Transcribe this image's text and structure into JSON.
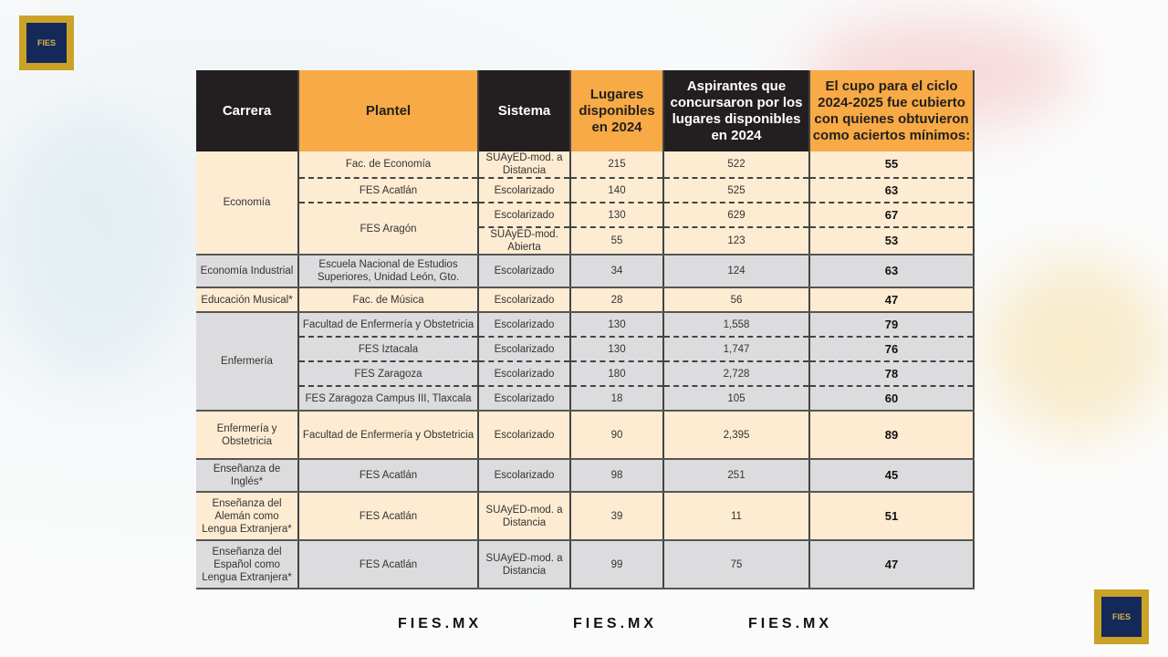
{
  "logo_text": "FIES",
  "footer": [
    "FIES.MX",
    "FIES.MX",
    "FIES.MX"
  ],
  "colors": {
    "header_dark": "#231f20",
    "header_orange": "#f7aa45",
    "row_cream": "#fdecd2",
    "row_gray": "#dcdcde",
    "logo_gold": "#c9a227",
    "logo_navy": "#14285a"
  },
  "table": {
    "headers": [
      {
        "label": "Carrera",
        "style": "dark"
      },
      {
        "label": "Plantel",
        "style": "orange"
      },
      {
        "label": "Sistema",
        "style": "dark"
      },
      {
        "label": "Lugares disponibles en 2024",
        "style": "orange"
      },
      {
        "label": "Aspirantes que concursaron por los lugares disponibles en 2024",
        "style": "dark"
      },
      {
        "label": "El cupo para el ciclo 2024-2025 fue cubierto con quienes obtuvieron como aciertos mínimos:",
        "style": "orange"
      }
    ],
    "groups": [
      {
        "carrera": "Economía",
        "shade": "cream",
        "planteles": [
          {
            "name": "Fac. de Economía",
            "rows": [
              {
                "sistema": "SUAyED-mod. a Distancia",
                "lugares": "215",
                "aspirantes": "522",
                "aciertos": "55"
              }
            ]
          },
          {
            "name": "FES Acatlán",
            "rows": [
              {
                "sistema": "Escolarizado",
                "lugares": "140",
                "aspirantes": "525",
                "aciertos": "63"
              }
            ]
          },
          {
            "name": "FES Aragón",
            "rows": [
              {
                "sistema": "Escolarizado",
                "lugares": "130",
                "aspirantes": "629",
                "aciertos": "67"
              },
              {
                "sistema": "SUAyED-mod. Abierta",
                "lugares": "55",
                "aspirantes": "123",
                "aciertos": "53"
              }
            ]
          }
        ]
      },
      {
        "carrera": "Economía Industrial",
        "shade": "gray",
        "planteles": [
          {
            "name": "Escuela Nacional de Estudios Superiores, Unidad León, Gto.",
            "rows": [
              {
                "sistema": "Escolarizado",
                "lugares": "34",
                "aspirantes": "124",
                "aciertos": "63"
              }
            ]
          }
        ]
      },
      {
        "carrera": "Educación Musical*",
        "shade": "cream",
        "planteles": [
          {
            "name": "Fac. de Música",
            "rows": [
              {
                "sistema": "Escolarizado",
                "lugares": "28",
                "aspirantes": "56",
                "aciertos": "47"
              }
            ]
          }
        ]
      },
      {
        "carrera": "Enfermería",
        "shade": "gray",
        "planteles": [
          {
            "name": "Facultad de Enfermería y Obstetricia",
            "rows": [
              {
                "sistema": "Escolarizado",
                "lugares": "130",
                "aspirantes": "1,558",
                "aciertos": "79"
              }
            ]
          },
          {
            "name": "FES Iztacala",
            "rows": [
              {
                "sistema": "Escolarizado",
                "lugares": "130",
                "aspirantes": "1,747",
                "aciertos": "76"
              }
            ]
          },
          {
            "name": "FES Zaragoza",
            "rows": [
              {
                "sistema": "Escolarizado",
                "lugares": "180",
                "aspirantes": "2,728",
                "aciertos": "78"
              }
            ]
          },
          {
            "name": "FES Zaragoza Campus III, Tlaxcala",
            "rows": [
              {
                "sistema": "Escolarizado",
                "lugares": "18",
                "aspirantes": "105",
                "aciertos": "60"
              }
            ]
          }
        ]
      },
      {
        "carrera": "Enfermería y Obstetricia",
        "shade": "cream",
        "planteles": [
          {
            "name": "Facultad de Enfermería y Obstetricia",
            "rows": [
              {
                "sistema": "Escolarizado",
                "lugares": "90",
                "aspirantes": "2,395",
                "aciertos": "89"
              }
            ]
          }
        ]
      },
      {
        "carrera": "Enseñanza de Inglés*",
        "shade": "gray",
        "planteles": [
          {
            "name": "FES Acatlán",
            "rows": [
              {
                "sistema": "Escolarizado",
                "lugares": "98",
                "aspirantes": "251",
                "aciertos": "45"
              }
            ]
          }
        ]
      },
      {
        "carrera": "Enseñanza del Alemán como Lengua Extranjera*",
        "shade": "cream",
        "planteles": [
          {
            "name": "FES Acatlán",
            "rows": [
              {
                "sistema": "SUAyED-mod. a Distancia",
                "lugares": "39",
                "aspirantes": "11",
                "aciertos": "51"
              }
            ]
          }
        ]
      },
      {
        "carrera": "Enseñanza del Español como Lengua Extranjera*",
        "shade": "gray",
        "planteles": [
          {
            "name": "FES Acatlán",
            "rows": [
              {
                "sistema": "SUAyED-mod. a Distancia",
                "lugares": "99",
                "aspirantes": "75",
                "aciertos": "47"
              }
            ]
          }
        ]
      }
    ]
  }
}
